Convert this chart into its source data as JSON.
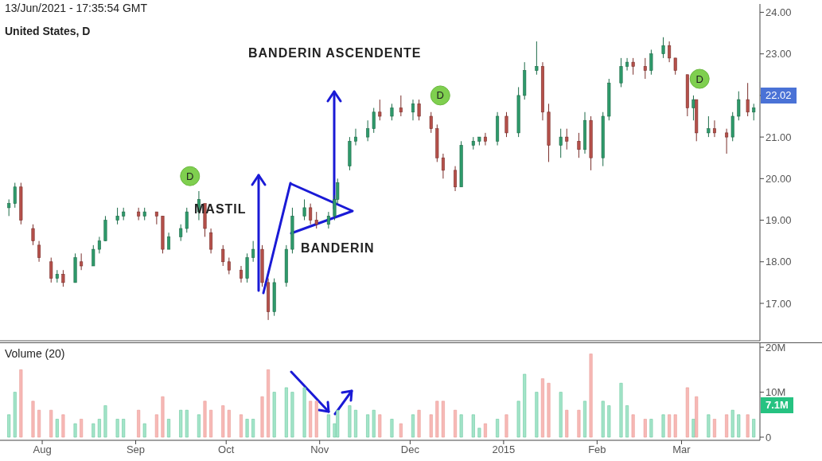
{
  "chart_data": [
    {
      "type": "candlestick",
      "title": "13/Jun/2021 - 17:35:54 GMT",
      "subtitle": "United States, D",
      "x": [
        "2014-07-21",
        "2014-07-23",
        "2014-07-25",
        "2014-07-29",
        "2014-07-31",
        "2014-08-04",
        "2014-08-06",
        "2014-08-08",
        "2014-08-12",
        "2014-08-14",
        "2014-08-18",
        "2014-08-20",
        "2014-08-22",
        "2014-08-26",
        "2014-08-28",
        "2014-09-02",
        "2014-09-04",
        "2014-09-08",
        "2014-09-10",
        "2014-09-12",
        "2014-09-16",
        "2014-09-18",
        "2014-09-22",
        "2014-09-24",
        "2014-09-26",
        "2014-09-30",
        "2014-10-02",
        "2014-10-06",
        "2014-10-08",
        "2014-10-10",
        "2014-10-13",
        "2014-10-15",
        "2014-10-17",
        "2014-10-21",
        "2014-10-23",
        "2014-10-27",
        "2014-10-29",
        "2014-10-31",
        "2014-11-04",
        "2014-11-06",
        "2014-11-07",
        "2014-11-11",
        "2014-11-13",
        "2014-11-17",
        "2014-11-19",
        "2014-11-21",
        "2014-11-25",
        "2014-11-28",
        "2014-12-02",
        "2014-12-04",
        "2014-12-08",
        "2014-12-10",
        "2014-12-12",
        "2014-12-16",
        "2014-12-18",
        "2014-12-22",
        "2014-12-24",
        "2014-12-26",
        "2014-12-30",
        "2015-01-02",
        "2015-01-06",
        "2015-01-08",
        "2015-01-12",
        "2015-01-14",
        "2015-01-16",
        "2015-01-20",
        "2015-01-22",
        "2015-01-26",
        "2015-01-28",
        "2015-01-30",
        "2015-02-03",
        "2015-02-05",
        "2015-02-09",
        "2015-02-11",
        "2015-02-13",
        "2015-02-17",
        "2015-02-19",
        "2015-02-23",
        "2015-02-25",
        "2015-02-27",
        "2015-03-03",
        "2015-03-05",
        "2015-03-06",
        "2015-03-10",
        "2015-03-12",
        "2015-03-16",
        "2015-03-18",
        "2015-03-20",
        "2015-03-23",
        "2015-03-25"
      ],
      "ohlc": [
        [
          19.3,
          19.5,
          19.1,
          19.4
        ],
        [
          19.4,
          19.9,
          19.3,
          19.8
        ],
        [
          19.8,
          19.9,
          18.9,
          19.0
        ],
        [
          18.8,
          18.9,
          18.4,
          18.5
        ],
        [
          18.4,
          18.5,
          18.0,
          18.1
        ],
        [
          18.0,
          18.1,
          17.5,
          17.6
        ],
        [
          17.6,
          17.8,
          17.5,
          17.7
        ],
        [
          17.7,
          17.8,
          17.4,
          17.5
        ],
        [
          17.5,
          18.2,
          17.5,
          18.1
        ],
        [
          18.0,
          18.2,
          17.8,
          17.9
        ],
        [
          17.9,
          18.4,
          17.9,
          18.3
        ],
        [
          18.3,
          18.6,
          18.2,
          18.5
        ],
        [
          18.5,
          19.1,
          18.5,
          19.0
        ],
        [
          19.0,
          19.3,
          18.9,
          19.1
        ],
        [
          19.1,
          19.3,
          19.0,
          19.2
        ],
        [
          19.2,
          19.3,
          19.0,
          19.1
        ],
        [
          19.1,
          19.3,
          19.0,
          19.2
        ],
        [
          19.2,
          19.2,
          18.9,
          19.1
        ],
        [
          19.1,
          19.1,
          18.2,
          18.3
        ],
        [
          18.3,
          18.7,
          18.3,
          18.6
        ],
        [
          18.6,
          18.9,
          18.5,
          18.8
        ],
        [
          18.8,
          19.3,
          18.7,
          19.2
        ],
        [
          19.2,
          19.7,
          19.0,
          19.5
        ],
        [
          19.4,
          19.4,
          18.6,
          18.8
        ],
        [
          18.7,
          18.8,
          18.2,
          18.3
        ],
        [
          18.3,
          18.4,
          17.9,
          18.0
        ],
        [
          18.0,
          18.1,
          17.7,
          17.8
        ],
        [
          17.8,
          17.9,
          17.5,
          17.6
        ],
        [
          17.6,
          18.2,
          17.5,
          18.1
        ],
        [
          18.1,
          18.5,
          18.0,
          18.3
        ],
        [
          18.3,
          18.4,
          17.4,
          17.5
        ],
        [
          17.5,
          17.6,
          16.6,
          16.8
        ],
        [
          16.8,
          17.6,
          16.7,
          17.5
        ],
        [
          17.5,
          18.4,
          17.4,
          18.3
        ],
        [
          18.3,
          19.3,
          18.2,
          19.1
        ],
        [
          19.1,
          19.5,
          19.0,
          19.3
        ],
        [
          19.3,
          19.4,
          18.9,
          19.0
        ],
        [
          19.0,
          19.2,
          18.8,
          18.9
        ],
        [
          18.9,
          19.2,
          18.8,
          19.1
        ],
        [
          19.1,
          19.6,
          19.0,
          19.5
        ],
        [
          19.5,
          20.0,
          19.4,
          19.9
        ],
        [
          20.3,
          21.0,
          20.2,
          20.9
        ],
        [
          20.9,
          21.2,
          20.8,
          21.0
        ],
        [
          21.0,
          21.4,
          20.9,
          21.2
        ],
        [
          21.2,
          21.7,
          21.1,
          21.6
        ],
        [
          21.6,
          21.9,
          21.4,
          21.5
        ],
        [
          21.5,
          21.8,
          21.4,
          21.7
        ],
        [
          21.7,
          22.0,
          21.5,
          21.6
        ],
        [
          21.6,
          21.9,
          21.4,
          21.8
        ],
        [
          21.8,
          21.9,
          21.4,
          21.5
        ],
        [
          21.5,
          21.6,
          21.1,
          21.2
        ],
        [
          21.2,
          21.3,
          20.4,
          20.5
        ],
        [
          20.5,
          20.6,
          20.0,
          20.2
        ],
        [
          20.2,
          20.3,
          19.7,
          19.8
        ],
        [
          19.8,
          20.9,
          19.8,
          20.8
        ],
        [
          20.8,
          21.0,
          20.7,
          20.9
        ],
        [
          20.9,
          21.0,
          20.8,
          21.0
        ],
        [
          21.0,
          21.1,
          20.8,
          20.9
        ],
        [
          20.9,
          21.6,
          20.8,
          21.5
        ],
        [
          21.5,
          21.6,
          21.0,
          21.1
        ],
        [
          21.1,
          22.2,
          21.0,
          22.0
        ],
        [
          22.0,
          22.8,
          21.9,
          22.6
        ],
        [
          22.6,
          23.3,
          22.5,
          22.7
        ],
        [
          22.7,
          22.8,
          21.4,
          21.6
        ],
        [
          21.6,
          21.8,
          20.4,
          20.8
        ],
        [
          20.8,
          21.2,
          20.5,
          21.0
        ],
        [
          21.0,
          21.2,
          20.7,
          20.9
        ],
        [
          20.9,
          21.1,
          20.5,
          20.7
        ],
        [
          20.7,
          21.6,
          20.6,
          21.4
        ],
        [
          21.4,
          21.5,
          20.2,
          20.5
        ],
        [
          20.5,
          21.6,
          20.3,
          21.5
        ],
        [
          21.5,
          22.4,
          21.4,
          22.3
        ],
        [
          22.3,
          22.9,
          22.2,
          22.7
        ],
        [
          22.7,
          22.9,
          22.6,
          22.8
        ],
        [
          22.8,
          22.9,
          22.5,
          22.7
        ],
        [
          22.7,
          22.9,
          22.4,
          22.6
        ],
        [
          22.6,
          23.1,
          22.5,
          23.0
        ],
        [
          23.0,
          23.4,
          22.9,
          23.2
        ],
        [
          23.2,
          23.3,
          22.8,
          22.9
        ],
        [
          22.9,
          22.9,
          22.5,
          22.6
        ],
        [
          22.5,
          22.5,
          21.5,
          21.7
        ],
        [
          21.7,
          22.0,
          21.4,
          21.9
        ],
        [
          21.9,
          21.9,
          20.9,
          21.1
        ],
        [
          21.1,
          21.5,
          21.0,
          21.2
        ],
        [
          21.2,
          21.4,
          21.0,
          21.1
        ],
        [
          21.1,
          21.2,
          20.6,
          21.0
        ],
        [
          21.0,
          21.6,
          20.9,
          21.5
        ],
        [
          21.5,
          22.1,
          21.4,
          21.9
        ],
        [
          21.9,
          22.3,
          21.5,
          21.6
        ],
        [
          21.6,
          21.8,
          21.4,
          21.7
        ]
      ],
      "xlim": [
        "2014-07-18",
        "2015-03-27"
      ],
      "ylim": [
        16.1,
        24.2
      ],
      "yticks": [
        {
          "value": 17,
          "label": "17.00"
        },
        {
          "value": 18,
          "label": "18.00"
        },
        {
          "value": 19,
          "label": "19.00"
        },
        {
          "value": 20,
          "label": "20.00"
        },
        {
          "value": 21,
          "label": "21.00"
        },
        {
          "value": 22,
          "label": null
        },
        {
          "value": 23,
          "label": "23.00"
        },
        {
          "value": 24,
          "label": "24.00"
        }
      ],
      "tick_labels": "y",
      "annotations": [
        "BANDERIN ASCENDENTE",
        "MASTIL",
        "BANDERIN",
        "22.02",
        {
          "text": "D",
          "x": "2014-09-19",
          "y": 20.06
        },
        {
          "text": "D",
          "x": "2014-12-11",
          "y": 22.0
        },
        {
          "text": "D",
          "x": "2015-03-07",
          "y": 22.4
        }
      ]
    },
    {
      "type": "bar",
      "title": "Volume (20)",
      "x": [
        "2014-07-21",
        "2014-07-23",
        "2014-07-25",
        "2014-07-29",
        "2014-07-31",
        "2014-08-04",
        "2014-08-06",
        "2014-08-08",
        "2014-08-12",
        "2014-08-14",
        "2014-08-18",
        "2014-08-20",
        "2014-08-22",
        "2014-08-26",
        "2014-08-28",
        "2014-09-02",
        "2014-09-04",
        "2014-09-08",
        "2014-09-10",
        "2014-09-12",
        "2014-09-16",
        "2014-09-18",
        "2014-09-22",
        "2014-09-24",
        "2014-09-26",
        "2014-09-30",
        "2014-10-02",
        "2014-10-06",
        "2014-10-08",
        "2014-10-10",
        "2014-10-13",
        "2014-10-15",
        "2014-10-17",
        "2014-10-21",
        "2014-10-23",
        "2014-10-27",
        "2014-10-29",
        "2014-10-31",
        "2014-11-04",
        "2014-11-06",
        "2014-11-07",
        "2014-11-11",
        "2014-11-13",
        "2014-11-17",
        "2014-11-19",
        "2014-11-21",
        "2014-11-25",
        "2014-11-28",
        "2014-12-02",
        "2014-12-04",
        "2014-12-08",
        "2014-12-10",
        "2014-12-12",
        "2014-12-16",
        "2014-12-18",
        "2014-12-22",
        "2014-12-24",
        "2014-12-26",
        "2014-12-30",
        "2015-01-02",
        "2015-01-06",
        "2015-01-08",
        "2015-01-12",
        "2015-01-14",
        "2015-01-16",
        "2015-01-20",
        "2015-01-22",
        "2015-01-26",
        "2015-01-28",
        "2015-01-30",
        "2015-02-03",
        "2015-02-05",
        "2015-02-09",
        "2015-02-11",
        "2015-02-13",
        "2015-02-17",
        "2015-02-19",
        "2015-02-23",
        "2015-02-25",
        "2015-02-27",
        "2015-03-03",
        "2015-03-05",
        "2015-03-06",
        "2015-03-10",
        "2015-03-12",
        "2015-03-16",
        "2015-03-18",
        "2015-03-20",
        "2015-03-23",
        "2015-03-25"
      ],
      "values": [
        5,
        10,
        15,
        8,
        6,
        6,
        4,
        5,
        3,
        4,
        3,
        4,
        7,
        4,
        4,
        6,
        3,
        5,
        9,
        4,
        6,
        6,
        5,
        8,
        6,
        7,
        6,
        5,
        4,
        4,
        9,
        15,
        10,
        11,
        10,
        11,
        8,
        8,
        5,
        3,
        6,
        7,
        6,
        5,
        6,
        5,
        4,
        3,
        5,
        6,
        5,
        8,
        8,
        6,
        5,
        5,
        2,
        3,
        4,
        5,
        8,
        14,
        10,
        13,
        12,
        10,
        6,
        6,
        8,
        18.5,
        8,
        7,
        12,
        7,
        5,
        4,
        4,
        5,
        5,
        5,
        11,
        4,
        9,
        5,
        4,
        5,
        6,
        5,
        5,
        4
      ],
      "colors": [
        "#a3e4c9",
        "#a3e4c9",
        "#f7b9b6",
        "#f7b9b6",
        "#f7b9b6",
        "#f7b9b6",
        "#a3e4c9",
        "#f7b9b6",
        "#a3e4c9",
        "#f7b9b6",
        "#a3e4c9",
        "#a3e4c9",
        "#a3e4c9",
        "#a3e4c9",
        "#a3e4c9",
        "#f7b9b6",
        "#a3e4c9",
        "#f7b9b6",
        "#f7b9b6",
        "#a3e4c9",
        "#a3e4c9",
        "#a3e4c9",
        "#a3e4c9",
        "#f7b9b6",
        "#f7b9b6",
        "#f7b9b6",
        "#f7b9b6",
        "#f7b9b6",
        "#a3e4c9",
        "#a3e4c9",
        "#f7b9b6",
        "#f7b9b6",
        "#a3e4c9",
        "#a3e4c9",
        "#a3e4c9",
        "#a3e4c9",
        "#f7b9b6",
        "#f7b9b6",
        "#a3e4c9",
        "#a3e4c9",
        "#a3e4c9",
        "#a3e4c9",
        "#a3e4c9",
        "#a3e4c9",
        "#a3e4c9",
        "#f7b9b6",
        "#a3e4c9",
        "#f7b9b6",
        "#a3e4c9",
        "#f7b9b6",
        "#f7b9b6",
        "#f7b9b6",
        "#f7b9b6",
        "#f7b9b6",
        "#a3e4c9",
        "#a3e4c9",
        "#a3e4c9",
        "#f7b9b6",
        "#a3e4c9",
        "#f7b9b6",
        "#a3e4c9",
        "#a3e4c9",
        "#a3e4c9",
        "#f7b9b6",
        "#f7b9b6",
        "#a3e4c9",
        "#f7b9b6",
        "#f7b9b6",
        "#a3e4c9",
        "#f7b9b6",
        "#a3e4c9",
        "#a3e4c9",
        "#a3e4c9",
        "#a3e4c9",
        "#f7b9b6",
        "#f7b9b6",
        "#a3e4c9",
        "#a3e4c9",
        "#f7b9b6",
        "#f7b9b6",
        "#f7b9b6",
        "#a3e4c9",
        "#f7b9b6",
        "#a3e4c9",
        "#f7b9b6",
        "#f7b9b6",
        "#a3e4c9",
        "#a3e4c9",
        "#f7b9b6",
        "#a3e4c9"
      ],
      "xlim": [
        "2014-07-18",
        "2015-03-27"
      ],
      "xticks": [
        {
          "value": "2014-08-01",
          "label": "Aug"
        },
        {
          "value": "2014-09-01",
          "label": "Sep"
        },
        {
          "value": "2014-10-01",
          "label": "Oct"
        },
        {
          "value": "2014-11-01",
          "label": "Nov"
        },
        {
          "value": "2014-12-01",
          "label": "Dec"
        },
        {
          "value": "2015-01-01",
          "label": "2015"
        },
        {
          "value": "2015-02-01",
          "label": "Feb"
        },
        {
          "value": "2015-03-01",
          "label": "Mar"
        }
      ],
      "ylim": [
        -0.7,
        20.9
      ],
      "yticks": [
        0,
        {
          "value": 10,
          "label": "10M"
        },
        {
          "value": 20,
          "label": "20M"
        }
      ],
      "annotations": [
        "7.1M"
      ]
    }
  ]
}
